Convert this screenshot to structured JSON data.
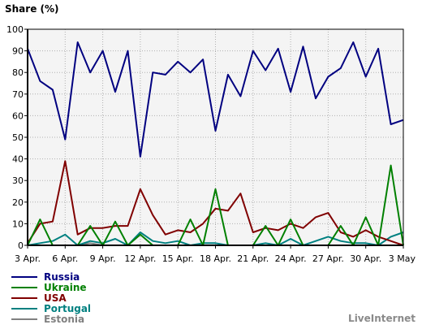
{
  "chart_data": {
    "type": "line",
    "ylabel": "Share (%)",
    "ylim": [
      0,
      100
    ],
    "yticks": [
      0,
      10,
      20,
      30,
      40,
      50,
      60,
      70,
      80,
      90,
      100
    ],
    "grid": true,
    "legend_position": "bottom-left",
    "x": [
      "3 Apr.",
      "4 Apr.",
      "5 Apr.",
      "6 Apr.",
      "7 Apr.",
      "8 Apr.",
      "9 Apr.",
      "10 Apr.",
      "11 Apr.",
      "12 Apr.",
      "13 Apr.",
      "14 Apr.",
      "15 Apr.",
      "16 Apr.",
      "17 Apr.",
      "18 Apr.",
      "19 Apr.",
      "20 Apr.",
      "21 Apr.",
      "22 Apr.",
      "23 Apr.",
      "24 Apr.",
      "25 Apr.",
      "26 Apr.",
      "27 Apr.",
      "28 Apr.",
      "29 Apr.",
      "30 Apr.",
      "1 May",
      "2 May",
      "3 May"
    ],
    "xtick_labels": [
      "3 Apr.",
      "6 Apr.",
      "9 Apr.",
      "12 Apr.",
      "15 Apr.",
      "18 Apr.",
      "21 Apr.",
      "24 Apr.",
      "27 Apr.",
      "30 Apr.",
      "3 May"
    ],
    "series": [
      {
        "name": "Russia",
        "color": "#000080",
        "values": [
          91,
          76,
          72,
          49,
          94,
          80,
          90,
          71,
          90,
          41,
          80,
          79,
          85,
          80,
          86,
          53,
          79,
          69,
          90,
          81,
          91,
          71,
          92,
          68,
          78,
          82,
          94,
          78,
          91,
          56,
          58
        ]
      },
      {
        "name": "Ukraine",
        "color": "#008000",
        "values": [
          0,
          12,
          0,
          0,
          0,
          9,
          0,
          11,
          0,
          5,
          0,
          0,
          0,
          12,
          0,
          26,
          0,
          0,
          0,
          9,
          0,
          12,
          0,
          0,
          0,
          9,
          0,
          13,
          0,
          37,
          0
        ]
      },
      {
        "name": "USA",
        "color": "#800000",
        "values": [
          1,
          10,
          11,
          39,
          5,
          8,
          8,
          9,
          9,
          26,
          14,
          5,
          7,
          6,
          10,
          17,
          16,
          24,
          6,
          8,
          7,
          10,
          8,
          13,
          15,
          6,
          4,
          7,
          4,
          2,
          0
        ]
      },
      {
        "name": "Portugal",
        "color": "#008080",
        "values": [
          0,
          1,
          2,
          5,
          0,
          2,
          1,
          3,
          0,
          6,
          2,
          1,
          2,
          0,
          1,
          1,
          0,
          0,
          0,
          1,
          0,
          3,
          0,
          2,
          4,
          2,
          1,
          1,
          0,
          4,
          6
        ]
      },
      {
        "name": "Estonia",
        "color": "#808080",
        "values": [
          0,
          0,
          0,
          0,
          0,
          1,
          0,
          0,
          0,
          0,
          0,
          0,
          0,
          0,
          0,
          0,
          0,
          0,
          0,
          0,
          0,
          0,
          0,
          0,
          0,
          0,
          0,
          0,
          0,
          0,
          0
        ]
      }
    ]
  },
  "brand": "LiveInternet"
}
